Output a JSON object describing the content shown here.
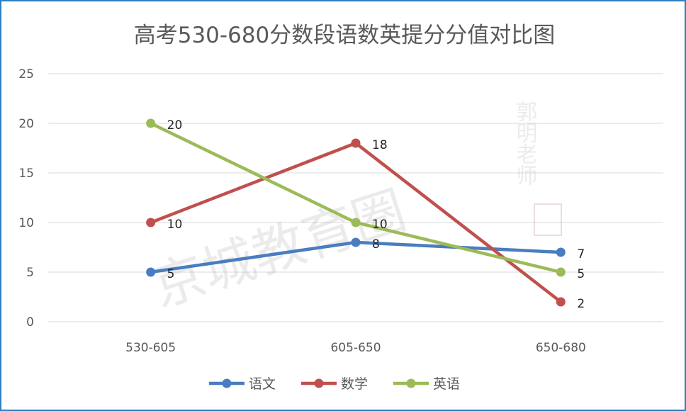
{
  "chart_data": {
    "type": "line",
    "title": "高考530-680分数段语数英提分分值对比图",
    "categories": [
      "530-605",
      "605-650",
      "650-680"
    ],
    "ylim": [
      0,
      25
    ],
    "yticks": [
      0,
      5,
      10,
      15,
      20,
      25
    ],
    "grid": true,
    "legend_position": "bottom",
    "data_labels": true,
    "series": [
      {
        "name": "语文",
        "values": [
          5,
          8,
          7
        ],
        "color": "#4a7cc0"
      },
      {
        "name": "数学",
        "values": [
          10,
          18,
          2
        ],
        "color": "#c0504d"
      },
      {
        "name": "英语",
        "values": [
          20,
          10,
          5
        ],
        "color": "#9bbb59"
      }
    ]
  },
  "watermark": {
    "text": "京城教育圈",
    "signature": "郭明老师",
    "seal": "印章"
  }
}
